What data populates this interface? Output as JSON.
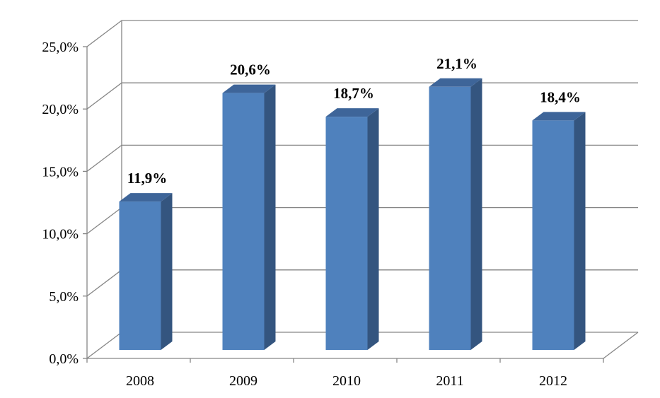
{
  "chart_data": {
    "type": "bar",
    "style": "3d-column",
    "categories": [
      "2008",
      "2009",
      "2010",
      "2011",
      "2012"
    ],
    "values": [
      11.9,
      20.6,
      18.7,
      21.1,
      18.4
    ],
    "data_labels": [
      "11,9%",
      "20,6%",
      "18,7%",
      "21,1%",
      "18,4%"
    ],
    "yticks": [
      0,
      5,
      10,
      15,
      20,
      25
    ],
    "ytick_labels": [
      "0,0%",
      "5,0%",
      "10,0%",
      "15,0%",
      "20,0%",
      "25,0%"
    ],
    "ylim": [
      0,
      25
    ],
    "grid": true,
    "legend": "none",
    "colors": {
      "bar_front": "#4f81bd",
      "bar_side": "#34557f",
      "bar_top": "#3e6599",
      "grid": "#868686"
    }
  }
}
